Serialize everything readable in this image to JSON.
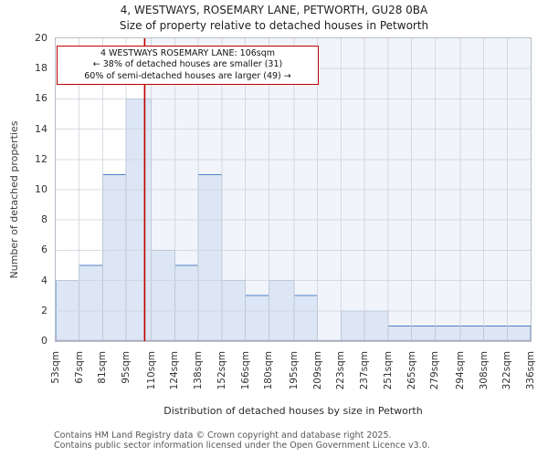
{
  "figure": {
    "title": "4, WESTWAYS, ROSEMARY LANE, PETWORTH, GU28 0BA",
    "subtitle": "Size of property relative to detached houses in Petworth"
  },
  "chart_data": {
    "type": "bar",
    "title": "4, WESTWAYS, ROSEMARY LANE, PETWORTH, GU28 0BA",
    "subtitle": "Size of property relative to detached houses in Petworth",
    "xlabel": "Distribution of detached houses by size in Petworth",
    "ylabel": "Number of detached properties",
    "bin_edges_sqm": [
      53,
      67,
      81,
      95,
      110,
      124,
      138,
      152,
      166,
      180,
      195,
      209,
      223,
      237,
      251,
      265,
      279,
      294,
      308,
      322,
      336
    ],
    "categories": [
      "53sqm",
      "67sqm",
      "81sqm",
      "95sqm",
      "110sqm",
      "124sqm",
      "138sqm",
      "152sqm",
      "166sqm",
      "180sqm",
      "195sqm",
      "209sqm",
      "223sqm",
      "237sqm",
      "251sqm",
      "265sqm",
      "279sqm",
      "294sqm",
      "308sqm",
      "322sqm",
      "336sqm"
    ],
    "values": [
      4,
      5,
      11,
      16,
      6,
      5,
      11,
      4,
      3,
      4,
      3,
      0,
      2,
      2,
      1,
      1,
      1,
      1,
      1,
      1
    ],
    "ylim": [
      0,
      20
    ],
    "yticks": [
      0,
      2,
      4,
      6,
      8,
      10,
      12,
      14,
      16,
      18,
      20
    ],
    "grid": true,
    "marker": {
      "value_sqm": 106,
      "color": "#c00000"
    },
    "shade_region": {
      "from_sqm": 106,
      "to_sqm": 336,
      "color": "#f1f4fb"
    },
    "colors": {
      "bar_fill": "#dce6f4",
      "bar_edge": "#4f81c4",
      "grid": "#d2d5dd",
      "axis_border": "#b9bdc7",
      "marker": "#c00000"
    }
  },
  "annotation": {
    "line1": "4 WESTWAYS ROSEMARY LANE: 106sqm",
    "line2": "← 38% of detached houses are smaller (31)",
    "line3": "60% of semi-detached houses are larger (49) →",
    "border_color": "#c00000"
  },
  "footer": {
    "line1": "Contains HM Land Registry data © Crown copyright and database right 2025.",
    "line2": "Contains public sector information licensed under the Open Government Licence v3.0."
  }
}
